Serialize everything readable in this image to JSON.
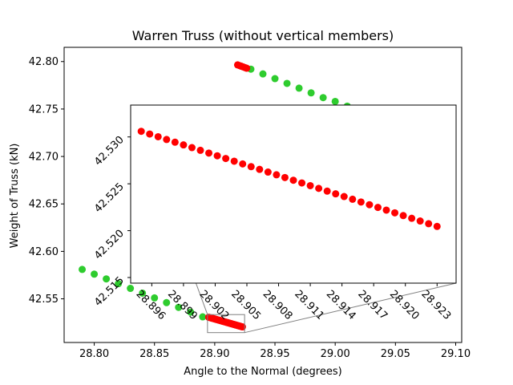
{
  "chart_data": {
    "type": "scatter",
    "title": "Warren Truss (without vertical members)",
    "xlabel": "Angle to the Normal (degrees)",
    "ylabel": "Weight of Truss (kN)",
    "xlim": [
      28.775,
      29.105
    ],
    "ylim": [
      42.504,
      42.815
    ],
    "xticks": [
      "28.80",
      "28.85",
      "28.90",
      "28.95",
      "29.00",
      "29.05",
      "29.10"
    ],
    "yticks": [
      "42.55",
      "42.60",
      "42.65",
      "42.70",
      "42.75",
      "42.80"
    ],
    "colors": {
      "green": "#2ecc2e",
      "red": "#ff0000",
      "connector": "#808080"
    },
    "series": [
      {
        "color": "green",
        "points": [
          [
            28.79,
            42.581
          ],
          [
            28.8,
            42.576
          ],
          [
            28.81,
            42.571
          ],
          [
            28.82,
            42.566
          ],
          [
            28.83,
            42.561
          ],
          [
            28.84,
            42.556
          ],
          [
            28.85,
            42.551
          ],
          [
            28.86,
            42.546
          ],
          [
            28.87,
            42.541
          ],
          [
            28.88,
            42.536
          ],
          [
            28.89,
            42.531
          ],
          [
            28.93,
            42.792
          ],
          [
            28.94,
            42.787
          ],
          [
            28.95,
            42.782
          ],
          [
            28.96,
            42.777
          ],
          [
            28.97,
            42.772
          ],
          [
            28.98,
            42.767
          ],
          [
            28.99,
            42.762
          ],
          [
            29.0,
            42.758
          ],
          [
            29.01,
            42.753
          ],
          [
            29.02,
            42.748
          ]
        ]
      },
      {
        "color": "red",
        "points": [
          [
            28.895,
            42.5306
          ],
          [
            28.8958,
            42.53031
          ],
          [
            28.8966,
            42.53002
          ],
          [
            28.8974,
            42.52973
          ],
          [
            28.8982,
            42.52944
          ],
          [
            28.899,
            42.52915
          ],
          [
            28.8998,
            42.52886
          ],
          [
            28.9006,
            42.52857
          ],
          [
            28.9014,
            42.52828
          ],
          [
            28.9022,
            42.52799
          ],
          [
            28.903,
            42.5277
          ],
          [
            28.9038,
            42.52741
          ],
          [
            28.9046,
            42.52712
          ],
          [
            28.9054,
            42.52683
          ],
          [
            28.9062,
            42.52654
          ],
          [
            28.907,
            42.52625
          ],
          [
            28.9078,
            42.52596
          ],
          [
            28.9086,
            42.52567
          ],
          [
            28.9094,
            42.52538
          ],
          [
            28.9102,
            42.52509
          ],
          [
            28.911,
            42.5248
          ],
          [
            28.9118,
            42.52451
          ],
          [
            28.9126,
            42.52422
          ],
          [
            28.9134,
            42.52393
          ],
          [
            28.9142,
            42.52364
          ],
          [
            28.915,
            42.52335
          ],
          [
            28.9158,
            42.52306
          ],
          [
            28.9166,
            42.52277
          ],
          [
            28.9174,
            42.52248
          ],
          [
            28.9182,
            42.52219
          ],
          [
            28.919,
            42.5219
          ],
          [
            28.9198,
            42.52161
          ],
          [
            28.9206,
            42.52132
          ],
          [
            28.9214,
            42.52103
          ],
          [
            28.9222,
            42.52074
          ],
          [
            28.923,
            42.52045
          ],
          [
            28.919,
            42.7965
          ],
          [
            28.9205,
            42.7958
          ],
          [
            28.922,
            42.7951
          ],
          [
            28.9235,
            42.7944
          ],
          [
            28.925,
            42.7937
          ],
          [
            28.9265,
            42.793
          ]
        ]
      }
    ],
    "inset": {
      "xlim": [
        28.894,
        28.9248
      ],
      "ylim": [
        42.5144,
        42.5334
      ],
      "xticks": [
        "28.896",
        "28.899",
        "28.902",
        "28.905",
        "28.908",
        "28.911",
        "28.914",
        "28.917",
        "28.920",
        "28.923"
      ],
      "yticks": [
        "42.515",
        "42.520",
        "42.525",
        "42.530"
      ]
    }
  }
}
